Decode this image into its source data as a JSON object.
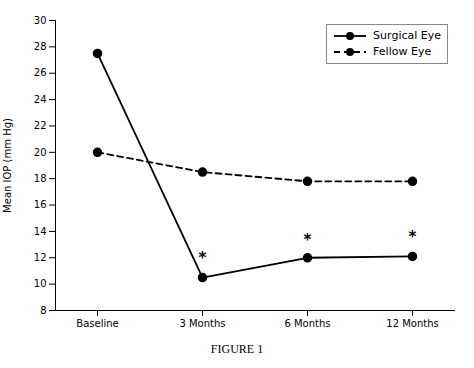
{
  "chart_data": {
    "type": "line",
    "categories": [
      "Baseline",
      "3 Months",
      "6 Months",
      "12 Months"
    ],
    "series": [
      {
        "name": "Surgical Eye",
        "color": "#000000",
        "values": [
          27.5,
          10.5,
          12.0,
          12.1
        ],
        "line_style": "solid",
        "marker": "circle"
      },
      {
        "name": "Fellow Eye",
        "color": "#000000",
        "values": [
          20.0,
          18.5,
          17.8,
          17.8
        ],
        "line_style": "dashed",
        "marker": "circle"
      }
    ],
    "ylabel": "Mean IOP (mm Hg)",
    "ylim": [
      8,
      30
    ],
    "yticks": [
      8,
      10,
      12,
      14,
      16,
      18,
      20,
      22,
      24,
      26,
      28,
      30
    ],
    "annotations": [
      {
        "x": "3 Months",
        "y": 11.6,
        "text": "*"
      },
      {
        "x": "6 Months",
        "y": 13.0,
        "text": "*"
      },
      {
        "x": "12 Months",
        "y": 13.2,
        "text": "*"
      }
    ],
    "legend": "upper right",
    "grid": false,
    "caption": "FIGURE 1"
  }
}
